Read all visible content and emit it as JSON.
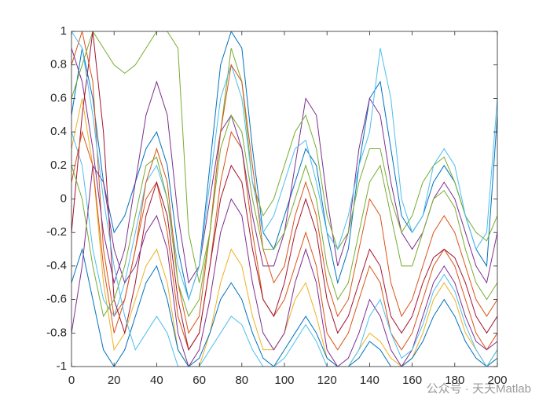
{
  "chart_data": {
    "type": "line",
    "x": [
      0,
      5,
      10,
      15,
      20,
      25,
      30,
      35,
      40,
      45,
      50,
      55,
      60,
      65,
      70,
      75,
      80,
      85,
      90,
      95,
      100,
      105,
      110,
      115,
      120,
      125,
      130,
      135,
      140,
      145,
      150,
      155,
      160,
      165,
      170,
      175,
      180,
      185,
      190,
      195,
      200
    ],
    "xlim": [
      0,
      200
    ],
    "ylim": [
      -1,
      1
    ],
    "xticks": [
      0,
      20,
      40,
      60,
      80,
      100,
      120,
      140,
      160,
      180,
      200
    ],
    "yticks": [
      -1,
      -0.8,
      -0.6,
      -0.4,
      -0.2,
      0,
      0.2,
      0.4,
      0.6,
      0.8,
      1
    ],
    "grid": false,
    "series": [
      {
        "color": "#0072BD",
        "values": [
          0.5,
          0.9,
          0.6,
          0.1,
          -0.2,
          -0.1,
          0.1,
          0.3,
          0.4,
          0.2,
          -0.3,
          -0.6,
          -0.4,
          0.2,
          0.8,
          1,
          0.9,
          0.3,
          -0.2,
          -0.3,
          -0.1,
          0.1,
          0.3,
          0.2,
          -0.2,
          -0.5,
          -0.3,
          0.2,
          0.6,
          0.7,
          0.3,
          -0.1,
          -0.2,
          -0.1,
          0.1,
          0.2,
          0.1,
          -0.1,
          -0.3,
          -0.4,
          0.5
        ]
      },
      {
        "color": "#D95319",
        "values": [
          0.8,
          1,
          0.7,
          -0.3,
          -0.7,
          -0.6,
          -0.3,
          0,
          0.1,
          -0.2,
          -0.7,
          -0.9,
          -0.8,
          -0.4,
          0.1,
          0.4,
          0.3,
          -0.2,
          -0.6,
          -0.7,
          -0.6,
          -0.4,
          -0.2,
          -0.4,
          -0.8,
          -0.9,
          -0.8,
          -0.6,
          -0.4,
          -0.5,
          -0.8,
          -0.9,
          -0.8,
          -0.6,
          -0.4,
          -0.3,
          -0.4,
          -0.6,
          -0.8,
          -0.9,
          -0.8
        ]
      },
      {
        "color": "#EDB120",
        "values": [
          0.3,
          0.6,
          0.2,
          -0.5,
          -0.9,
          -0.8,
          -0.6,
          -0.4,
          -0.3,
          -0.5,
          -0.9,
          -1,
          -1,
          -0.8,
          -0.5,
          -0.3,
          -0.4,
          -0.7,
          -0.9,
          -0.9,
          -0.8,
          -0.6,
          -0.5,
          -0.7,
          -0.95,
          -1,
          -1,
          -0.9,
          -0.8,
          -0.85,
          -0.95,
          -1,
          -0.95,
          -0.8,
          -0.6,
          -0.5,
          -0.6,
          -0.8,
          -0.9,
          -1,
          -0.9
        ]
      },
      {
        "color": "#7E2F8E",
        "values": [
          0.9,
          0.7,
          0.3,
          -0.2,
          -0.5,
          -0.3,
          0.1,
          0.5,
          0.7,
          0.5,
          -0.1,
          -0.5,
          -0.4,
          0,
          0.4,
          0.5,
          0.3,
          -0.1,
          -0.4,
          -0.4,
          -0.2,
          0.2,
          0.6,
          0.5,
          0,
          -0.4,
          -0.2,
          0.3,
          0.6,
          0.5,
          0.1,
          -0.2,
          -0.3,
          -0.2,
          0,
          0.1,
          0,
          -0.2,
          -0.4,
          -0.5,
          -0.2
        ]
      },
      {
        "color": "#77AC30",
        "values": [
          0.6,
          0.8,
          1,
          0.9,
          0.8,
          0.75,
          0.8,
          0.9,
          1,
          1,
          0.9,
          -0.2,
          -0.5,
          -0.2,
          0.4,
          0.9,
          0.7,
          0.1,
          -0.1,
          0,
          0.2,
          0.4,
          0.5,
          0.3,
          -0.1,
          -0.3,
          -0.2,
          0.1,
          0.3,
          0.3,
          0,
          -0.2,
          -0.1,
          0.1,
          0.2,
          0.25,
          0.1,
          -0.1,
          -0.2,
          -0.25,
          -0.1
        ]
      },
      {
        "color": "#4DBEEE",
        "values": [
          0.4,
          0.2,
          -0.3,
          -0.6,
          -0.7,
          -0.5,
          -0.2,
          0.1,
          0.2,
          0,
          -0.4,
          -0.6,
          -0.4,
          0.1,
          0.6,
          0.8,
          0.6,
          0.1,
          -0.2,
          -0.1,
          0.1,
          0.3,
          0.35,
          0.1,
          -0.2,
          -0.3,
          -0.1,
          0.2,
          0.4,
          0.9,
          0.6,
          0,
          -0.2,
          -0.1,
          0.2,
          0.3,
          0.2,
          -0.1,
          -0.3,
          -0.2,
          0.6
        ]
      },
      {
        "color": "#A2142F",
        "values": [
          -0.2,
          0.5,
          1,
          0.4,
          -0.6,
          -0.8,
          -0.5,
          -0.1,
          0.1,
          -0.1,
          -0.6,
          -0.9,
          -0.8,
          -0.4,
          0,
          0.2,
          0.1,
          -0.3,
          -0.6,
          -0.7,
          -0.5,
          -0.2,
          0,
          -0.2,
          -0.6,
          -0.8,
          -0.7,
          -0.5,
          -0.3,
          -0.4,
          -0.7,
          -0.8,
          -0.7,
          -0.5,
          -0.35,
          -0.3,
          -0.35,
          -0.5,
          -0.7,
          -0.8,
          -0.7
        ]
      },
      {
        "color": "#0072BD",
        "values": [
          -0.5,
          -0.3,
          -0.6,
          -0.9,
          -1,
          -0.9,
          -0.7,
          -0.5,
          -0.4,
          -0.6,
          -0.9,
          -1,
          -0.95,
          -0.8,
          -0.6,
          -0.5,
          -0.6,
          -0.8,
          -0.95,
          -1,
          -0.9,
          -0.8,
          -0.7,
          -0.8,
          -0.95,
          -1,
          -1,
          -0.95,
          -0.85,
          -0.9,
          -1,
          -1,
          -0.95,
          -0.85,
          -0.7,
          -0.6,
          -0.7,
          -0.85,
          -0.95,
          -1,
          -0.95
        ]
      },
      {
        "color": "#D95319",
        "values": [
          0.1,
          0.4,
          0.2,
          -0.4,
          -0.8,
          -0.6,
          -0.3,
          0.1,
          0.3,
          0.1,
          -0.5,
          -0.8,
          -0.7,
          -0.2,
          0.4,
          0.8,
          0.7,
          0.2,
          -0.3,
          -0.5,
          -0.4,
          -0.1,
          0.1,
          -0.1,
          -0.5,
          -0.7,
          -0.6,
          -0.3,
          0,
          -0.1,
          -0.5,
          -0.7,
          -0.6,
          -0.4,
          -0.2,
          -0.1,
          -0.2,
          -0.4,
          -0.6,
          -0.7,
          -0.6
        ]
      },
      {
        "color": "#7E2F8E",
        "values": [
          -0.8,
          -0.4,
          0.2,
          0.1,
          -0.3,
          -0.5,
          -0.4,
          -0.2,
          -0.1,
          -0.3,
          -0.8,
          -1,
          -0.9,
          -0.6,
          -0.2,
          0,
          -0.1,
          -0.5,
          -0.8,
          -0.9,
          -0.8,
          -0.5,
          -0.3,
          -0.5,
          -0.9,
          -1,
          -0.95,
          -0.8,
          -0.6,
          -0.7,
          -0.9,
          -1,
          -0.9,
          -0.7,
          -0.5,
          -0.4,
          -0.5,
          -0.7,
          -0.85,
          -0.9,
          -0.85
        ]
      },
      {
        "color": "#77AC30",
        "values": [
          0.2,
          0,
          -0.4,
          -0.7,
          -0.6,
          -0.4,
          -0.1,
          0.2,
          0.25,
          0,
          -0.5,
          -0.7,
          -0.6,
          -0.2,
          0.3,
          0.5,
          0.4,
          0,
          -0.3,
          -0.3,
          -0.2,
          0,
          0.2,
          0,
          -0.4,
          -0.6,
          -0.5,
          -0.2,
          0.1,
          0.2,
          -0.1,
          -0.4,
          -0.4,
          -0.2,
          0,
          0.05,
          -0.05,
          -0.3,
          -0.5,
          -0.6,
          -0.5
        ]
      },
      {
        "color": "#4DBEEE",
        "values": [
          1,
          0.9,
          0.5,
          0,
          -0.4,
          -0.7,
          -0.9,
          -0.8,
          -0.7,
          -0.8,
          -1,
          -1,
          -1,
          -0.9,
          -0.8,
          -0.7,
          -0.75,
          -0.9,
          -1,
          -1,
          -0.95,
          -0.85,
          -0.75,
          -0.85,
          -1,
          -1,
          -1,
          -0.9,
          -0.7,
          -0.6,
          -0.8,
          -0.95,
          -0.9,
          -0.75,
          -0.55,
          -0.45,
          -0.55,
          -0.75,
          -0.9,
          -1,
          -0.9
        ]
      }
    ]
  },
  "watermark": "公众号 · 天天Matlab"
}
